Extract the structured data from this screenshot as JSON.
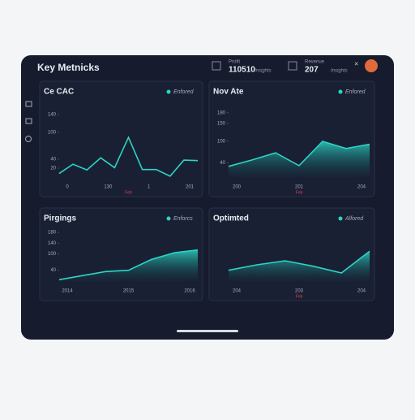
{
  "header": {
    "title": "Key Metnicks",
    "stats": [
      {
        "label": "Profit",
        "value": "110510",
        "note": "Insights"
      },
      {
        "label": "Revenue",
        "value": "207",
        "note": "Insights"
      }
    ]
  },
  "panels": [
    {
      "type": "line",
      "title": "Ce CAC",
      "legend": "Enfored",
      "ylim": [
        0,
        160
      ],
      "yticks": [
        20,
        40,
        100,
        140
      ],
      "xlabels": [
        "0",
        "130",
        "1",
        "201"
      ],
      "xnote": "Feb",
      "values": [
        8,
        29,
        16,
        43,
        21,
        89,
        17,
        17,
        2,
        38,
        37
      ]
    },
    {
      "type": "area",
      "title": "Nov Ate",
      "legend": "Enfored",
      "ylim": [
        0,
        200
      ],
      "yticks": [
        40,
        100,
        150,
        180
      ],
      "xlabels": [
        "200",
        "201",
        "204"
      ],
      "xnote": "Feb",
      "values": [
        30,
        48,
        68,
        32,
        100,
        80,
        92
      ]
    },
    {
      "type": "area",
      "title": "Pirgings",
      "legend": "Enforcs",
      "ylim": [
        0,
        180
      ],
      "yticks": [
        40,
        100,
        140,
        180
      ],
      "xlabels": [
        "2014",
        "2015",
        "2016"
      ],
      "values": [
        5,
        20,
        35,
        40,
        80,
        105,
        115
      ]
    },
    {
      "type": "area",
      "title": "Optimted",
      "legend": "Alfored",
      "ylim": [
        0,
        180
      ],
      "yticks": [],
      "xlabels": [
        "204",
        "203",
        "204"
      ],
      "xnote": "Feb",
      "values": [
        40,
        60,
        75,
        55,
        30,
        110
      ]
    }
  ]
}
